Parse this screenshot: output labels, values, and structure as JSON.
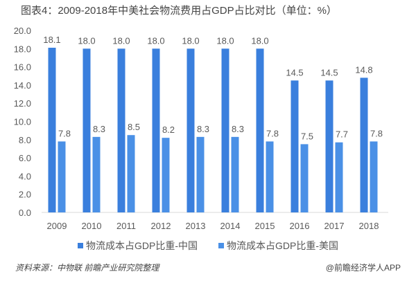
{
  "title": "图表4：2009-2018年中美社会物流费用占GDP占比对比（单位：%）",
  "colors": {
    "china": "#3a7fdd",
    "us": "#4a90e6",
    "axis": "#d9d9d9",
    "label": "#595959"
  },
  "chart_data": {
    "type": "bar",
    "title": "图表4：2009-2018年中美社会物流费用占GDP占比对比（单位：%）",
    "xlabel": "",
    "ylabel": "",
    "ylim": [
      0,
      20
    ],
    "yticks": [
      "0.0",
      "2.0",
      "4.0",
      "6.0",
      "8.0",
      "10.0",
      "12.0",
      "14.0",
      "16.0",
      "18.0",
      "20.0"
    ],
    "grid": false,
    "legend_position": "bottom",
    "categories": [
      "2009",
      "2010",
      "2011",
      "2012",
      "2013",
      "2014",
      "2015",
      "2016",
      "2017",
      "2018"
    ],
    "series": [
      {
        "name": "物流成本占GDP比重-中国",
        "values": [
          18.1,
          18.0,
          18.0,
          18.0,
          18.0,
          18.0,
          18.0,
          14.5,
          14.5,
          14.8
        ],
        "labels": [
          "18.1",
          "18.0",
          "18.0",
          "18.0",
          "18.0",
          "18.0",
          "18.0",
          "14.5",
          "14.5",
          "14.8"
        ]
      },
      {
        "name": "物流成本占GDP比重-美国",
        "values": [
          7.8,
          8.3,
          8.5,
          8.2,
          8.3,
          8.3,
          7.8,
          7.5,
          7.7,
          7.8
        ],
        "labels": [
          "7.8",
          "8.3",
          "8.5",
          "8.2",
          "8.3",
          "8.3",
          "7.8",
          "7.5",
          "7.7",
          "7.8"
        ]
      }
    ]
  },
  "legend": [
    "物流成本占GDP比重-中国",
    "物流成本占GDP比重-美国"
  ],
  "footer": {
    "source": "资料来源：中物联 前瞻产业研究院整理",
    "credit": "@前瞻经济学人APP"
  }
}
